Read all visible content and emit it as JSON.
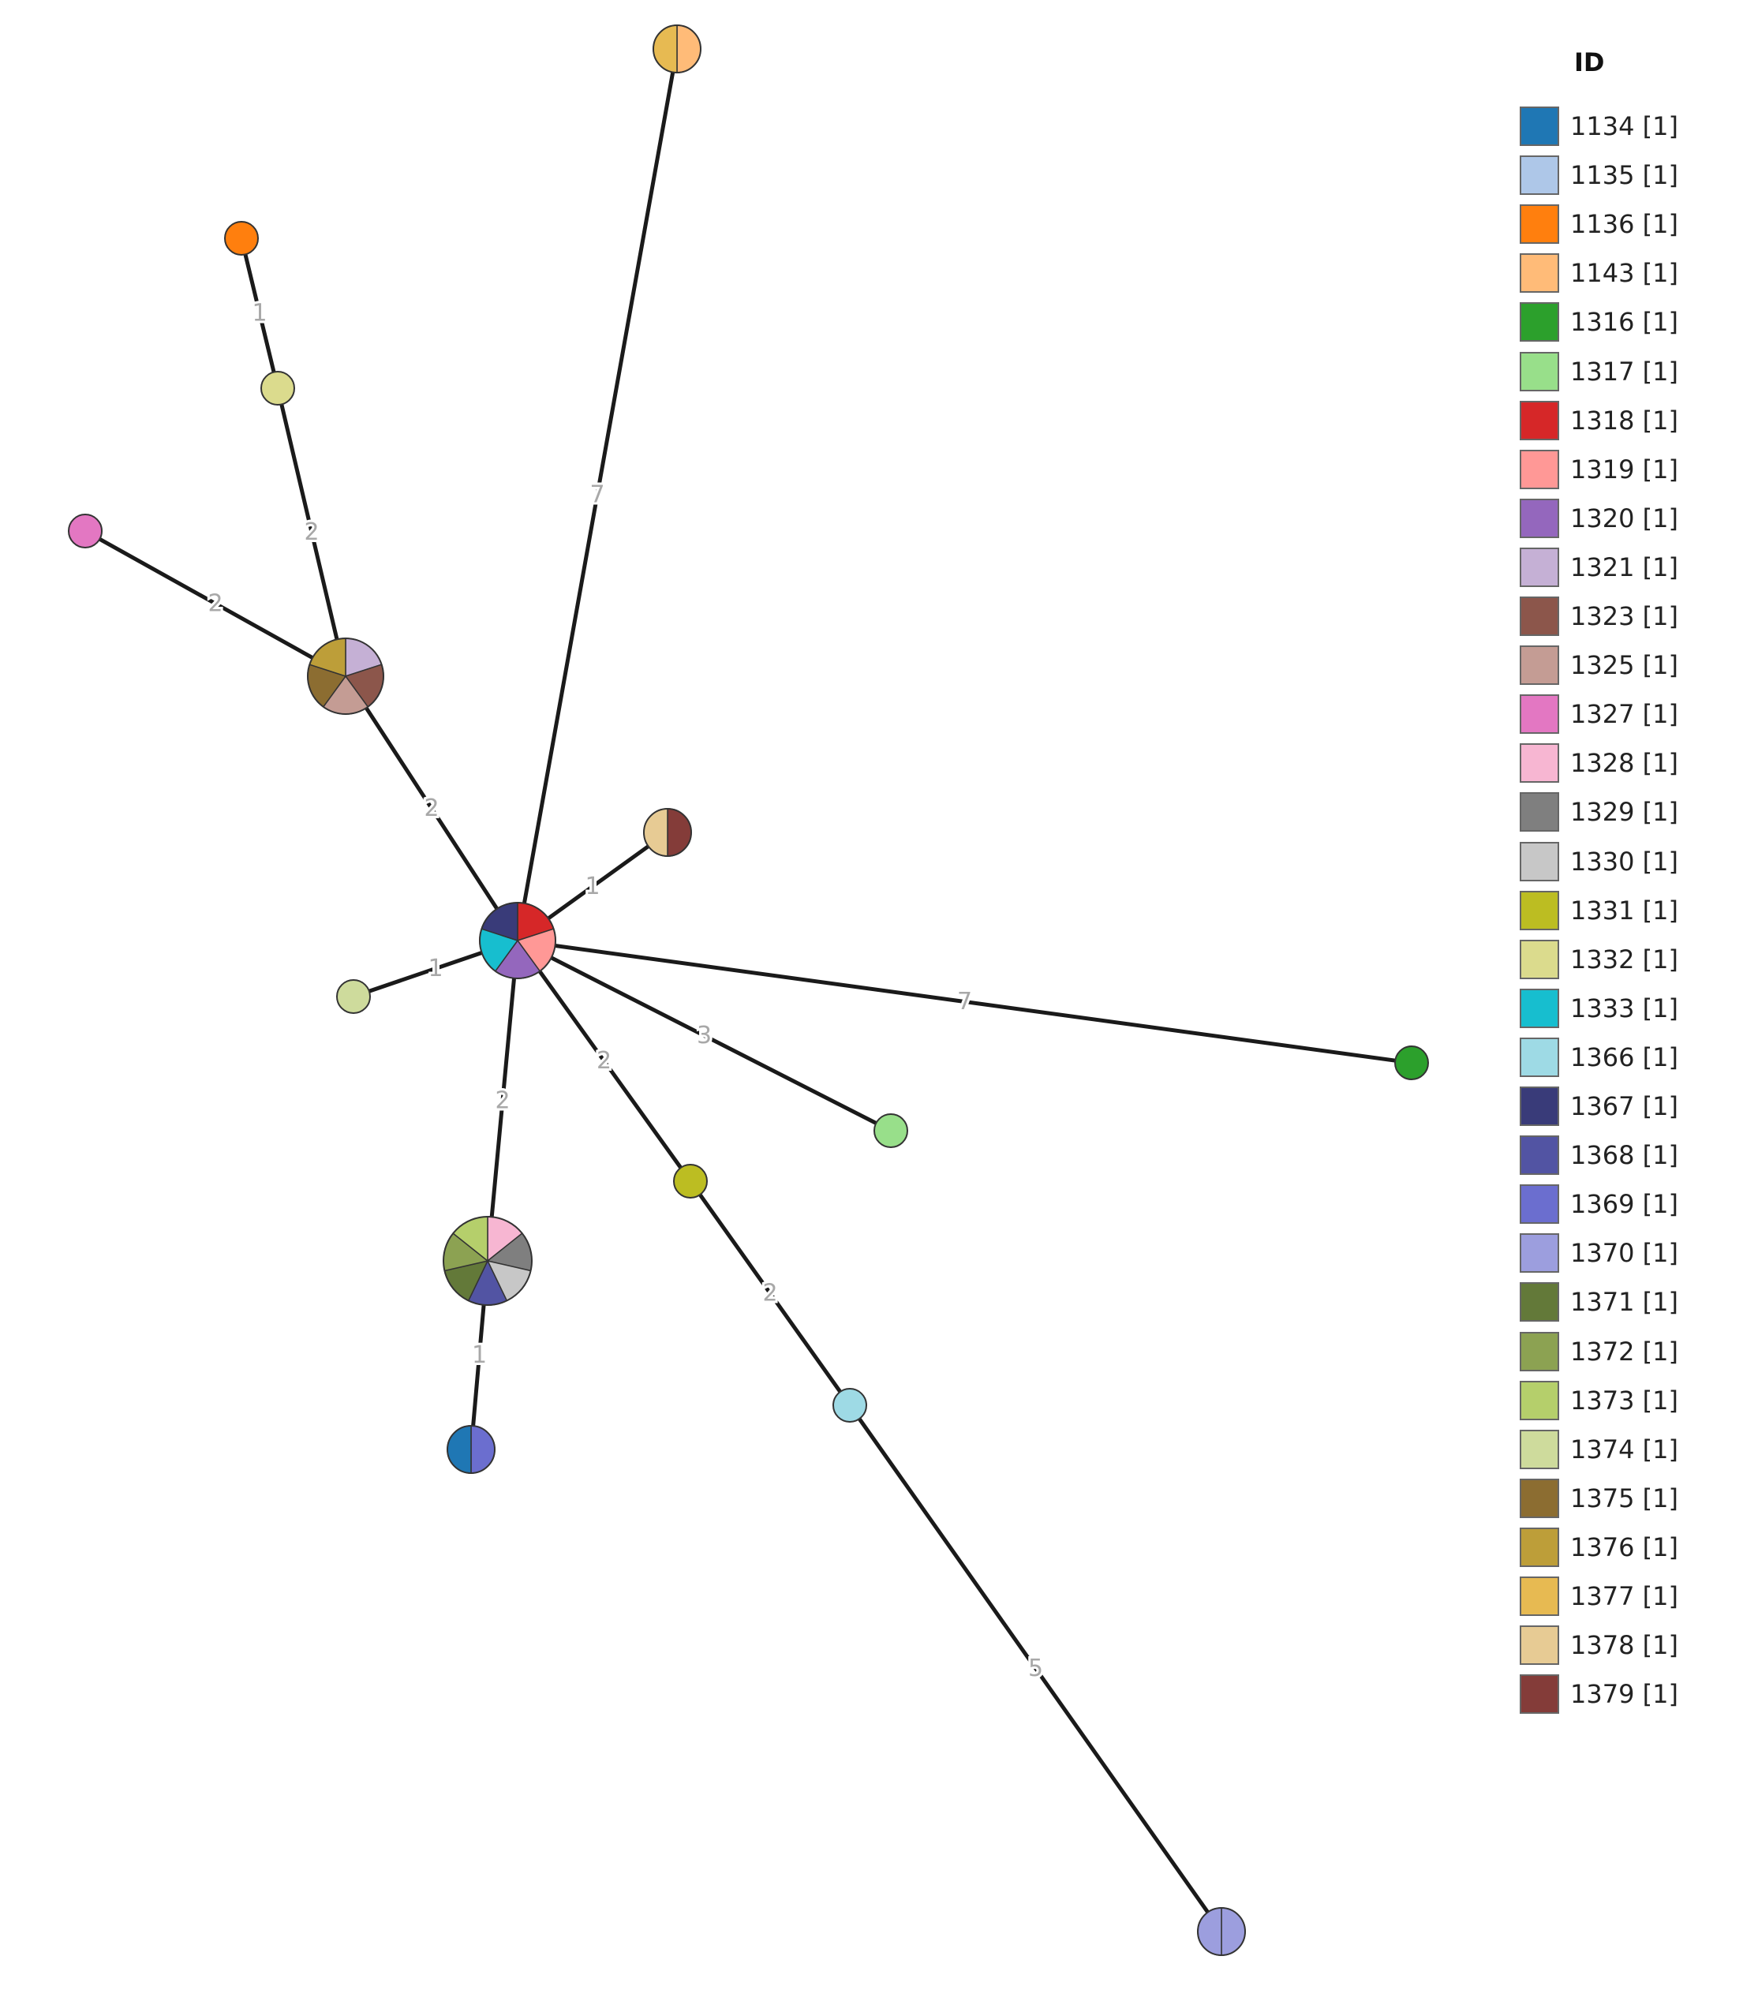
{
  "legend": {
    "title": "ID",
    "items": [
      {
        "label": "1134 [1]",
        "color": "#1f77b4"
      },
      {
        "label": "1135 [1]",
        "color": "#aec7e8"
      },
      {
        "label": "1136 [1]",
        "color": "#ff7f0e"
      },
      {
        "label": "1143 [1]",
        "color": "#ffbb78"
      },
      {
        "label": "1316 [1]",
        "color": "#2ca02c"
      },
      {
        "label": "1317 [1]",
        "color": "#98df8a"
      },
      {
        "label": "1318 [1]",
        "color": "#d62728"
      },
      {
        "label": "1319 [1]",
        "color": "#ff9896"
      },
      {
        "label": "1320 [1]",
        "color": "#9467bd"
      },
      {
        "label": "1321 [1]",
        "color": "#c5b0d5"
      },
      {
        "label": "1323 [1]",
        "color": "#8c564b"
      },
      {
        "label": "1325 [1]",
        "color": "#c49c94"
      },
      {
        "label": "1327 [1]",
        "color": "#e377c2"
      },
      {
        "label": "1328 [1]",
        "color": "#f7b6d2"
      },
      {
        "label": "1329 [1]",
        "color": "#7f7f7f"
      },
      {
        "label": "1330 [1]",
        "color": "#c7c7c7"
      },
      {
        "label": "1331 [1]",
        "color": "#bcbd22"
      },
      {
        "label": "1332 [1]",
        "color": "#dbdb8d"
      },
      {
        "label": "1333 [1]",
        "color": "#17becf"
      },
      {
        "label": "1366 [1]",
        "color": "#9edae5"
      },
      {
        "label": "1367 [1]",
        "color": "#393b79"
      },
      {
        "label": "1368 [1]",
        "color": "#5254a3"
      },
      {
        "label": "1369 [1]",
        "color": "#6b6ecf"
      },
      {
        "label": "1370 [1]",
        "color": "#9c9ede"
      },
      {
        "label": "1371 [1]",
        "color": "#637939"
      },
      {
        "label": "1372 [1]",
        "color": "#8ca252"
      },
      {
        "label": "1373 [1]",
        "color": "#b5cf6b"
      },
      {
        "label": "1374 [1]",
        "color": "#cedb9c"
      },
      {
        "label": "1375 [1]",
        "color": "#8c6d31"
      },
      {
        "label": "1376 [1]",
        "color": "#bd9e39"
      },
      {
        "label": "1377 [1]",
        "color": "#e7ba52"
      },
      {
        "label": "1378 [1]",
        "color": "#e7cb94"
      },
      {
        "label": "1379 [1]",
        "color": "#843c39"
      }
    ]
  },
  "nodes": [
    {
      "id": "hub",
      "members": [
        "1318",
        "1319",
        "1320",
        "1333",
        "1367"
      ]
    },
    {
      "id": "top-node",
      "members": [
        "1143",
        "1377"
      ]
    },
    {
      "id": "orange-node",
      "members": [
        "1136"
      ]
    },
    {
      "id": "khaki-node",
      "members": [
        "1332"
      ]
    },
    {
      "id": "pink-node",
      "members": [
        "1327"
      ]
    },
    {
      "id": "brown-cluster",
      "members": [
        "1321",
        "1323",
        "1325",
        "1375",
        "1376"
      ]
    },
    {
      "id": "maroon-node",
      "members": [
        "1379",
        "1378"
      ]
    },
    {
      "id": "pale-green-node",
      "members": [
        "1374"
      ]
    },
    {
      "id": "green-node",
      "members": [
        "1316"
      ]
    },
    {
      "id": "light-green-node",
      "members": [
        "1317"
      ]
    },
    {
      "id": "olive-node",
      "members": [
        "1331"
      ]
    },
    {
      "id": "green-cluster",
      "members": [
        "1328",
        "1329",
        "1330",
        "1368",
        "1371",
        "1372",
        "1373"
      ]
    },
    {
      "id": "blue-node",
      "members": [
        "1369",
        "1134"
      ]
    },
    {
      "id": "cyan-node",
      "members": [
        "1366"
      ]
    },
    {
      "id": "lavender-node",
      "members": [
        "1370",
        "1370"
      ]
    }
  ],
  "edges": [
    {
      "from": "hub",
      "to": "top-node",
      "label": "7"
    },
    {
      "from": "orange-node",
      "to": "khaki-node",
      "label": "1"
    },
    {
      "from": "khaki-node",
      "to": "brown-cluster",
      "label": "2"
    },
    {
      "from": "pink-node",
      "to": "brown-cluster",
      "label": "2"
    },
    {
      "from": "brown-cluster",
      "to": "hub",
      "label": "2"
    },
    {
      "from": "hub",
      "to": "maroon-node",
      "label": "1"
    },
    {
      "from": "hub",
      "to": "pale-green-node",
      "label": "1"
    },
    {
      "from": "hub",
      "to": "green-node",
      "label": "7"
    },
    {
      "from": "hub",
      "to": "light-green-node",
      "label": "3"
    },
    {
      "from": "hub",
      "to": "olive-node",
      "label": "2"
    },
    {
      "from": "hub",
      "to": "green-cluster",
      "label": "2"
    },
    {
      "from": "green-cluster",
      "to": "blue-node",
      "label": "1"
    },
    {
      "from": "olive-node",
      "to": "cyan-node",
      "label": "2"
    },
    {
      "from": "cyan-node",
      "to": "lavender-node",
      "label": "5"
    }
  ]
}
